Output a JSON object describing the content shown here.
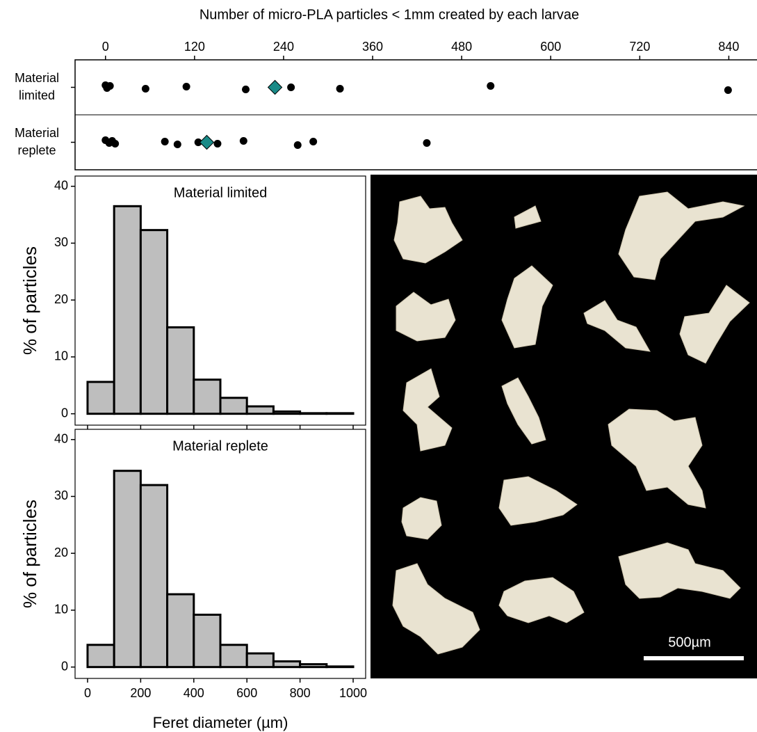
{
  "chart_data": [
    {
      "type": "strip",
      "title": "Number of micro-PLA particles < 1mm created by each larvae",
      "categories": [
        "Material limited",
        "Material replete"
      ],
      "series": [
        {
          "values": [
            0,
            2,
            6,
            54,
            109,
            189,
            250,
            316,
            519,
            839
          ],
          "mean": 228.4
        },
        {
          "values": [
            0,
            5,
            9,
            13,
            80,
            97,
            125,
            151,
            186,
            259,
            280,
            433
          ],
          "mean": 136.5
        }
      ],
      "color": "#000000",
      "mean_color": "#1a8a87",
      "xlim": [
        -41,
        878
      ],
      "xticks": [
        0,
        120,
        240,
        360,
        480,
        600,
        720,
        840
      ]
    },
    {
      "type": "histogram",
      "title": "Material limited",
      "ylabel": "% of particles",
      "bins": [
        0,
        100,
        200,
        300,
        400,
        500,
        600,
        700,
        800,
        900,
        1000
      ],
      "values": [
        5.6,
        36.5,
        32.3,
        15.2,
        6.0,
        2.8,
        1.3,
        0.4,
        0.1,
        0.1
      ],
      "color": "#bebebe",
      "xlim": [
        -47,
        1047
      ],
      "xticks": [
        0,
        200,
        400,
        600,
        800,
        1000
      ],
      "ylim": [
        -2,
        41.8
      ],
      "yticks": [
        0,
        10,
        20,
        30,
        40
      ]
    },
    {
      "type": "histogram",
      "title": "Material replete",
      "ylabel": "% of particles",
      "xlabel": "Feret diameter (µm)",
      "bins": [
        0,
        100,
        200,
        300,
        400,
        500,
        600,
        700,
        800,
        900,
        1000
      ],
      "values": [
        3.9,
        34.5,
        32.0,
        12.8,
        9.2,
        3.9,
        2.4,
        1.0,
        0.5,
        0.1
      ],
      "color": "#bebebe",
      "xlim": [
        -47,
        1047
      ],
      "xticks": [
        0,
        200,
        400,
        600,
        800,
        1000
      ],
      "ylim": [
        -2,
        41.8
      ],
      "yticks": [
        0,
        10,
        20,
        30,
        40
      ]
    }
  ],
  "image": {
    "scale_bar_label": "500µm"
  }
}
